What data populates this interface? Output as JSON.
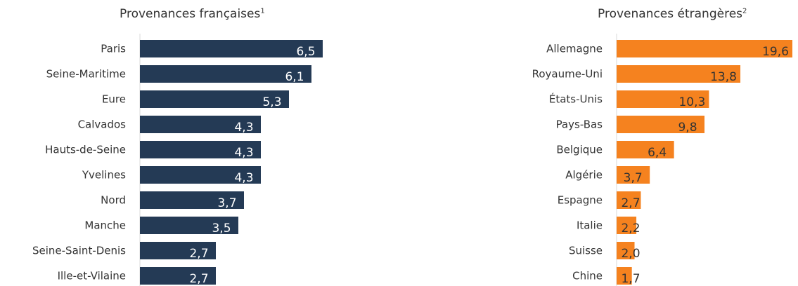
{
  "chart_data": [
    {
      "type": "bar",
      "orientation": "horizontal",
      "title": "Provenances françaises",
      "title_footnote": "1",
      "categories": [
        "Paris",
        "Seine-Maritime",
        "Eure",
        "Calvados",
        "Hauts-de-Seine",
        "Yvelines",
        "Nord",
        "Manche",
        "Seine-Saint-Denis",
        "Ille-et-Vilaine"
      ],
      "values": [
        6.5,
        6.1,
        5.3,
        4.3,
        4.3,
        4.3,
        3.7,
        3.5,
        2.7,
        2.7
      ],
      "value_labels": [
        "6,5",
        "6,1",
        "5,3",
        "4,3",
        "4,3",
        "4,3",
        "3,7",
        "3,5",
        "2,7",
        "2,7"
      ],
      "xlim": [
        0,
        6.5
      ],
      "grid": false,
      "color": "#243a55"
    },
    {
      "type": "bar",
      "orientation": "horizontal",
      "title": "Provenances étrangères",
      "title_footnote": "2",
      "categories": [
        "Allemagne",
        "Royaume-Uni",
        "États-Unis",
        "Pays-Bas",
        "Belgique",
        "Algérie",
        "Espagne",
        "Italie",
        "Suisse",
        "Chine"
      ],
      "values": [
        19.6,
        13.8,
        10.3,
        9.8,
        6.4,
        3.7,
        2.7,
        2.2,
        2.0,
        1.7
      ],
      "value_labels": [
        "19,6",
        "13,8",
        "10,3",
        "9,8",
        "6,4",
        "3,7",
        "2,7",
        "2,2",
        "2,0",
        "1,7"
      ],
      "xlim": [
        0,
        19.6
      ],
      "grid": false,
      "color": "#f5821f"
    }
  ]
}
